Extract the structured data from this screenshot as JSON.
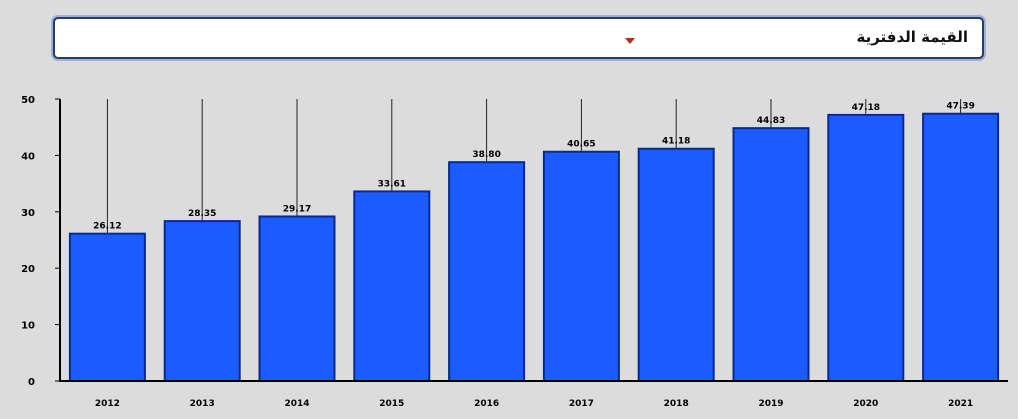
{
  "selector": {
    "selected_label": "القيمة الدفترية"
  },
  "chart_data": {
    "type": "bar",
    "categories": [
      "2012",
      "2013",
      "2014",
      "2015",
      "2016",
      "2017",
      "2018",
      "2019",
      "2020",
      "2021"
    ],
    "values": [
      26.12,
      28.35,
      29.17,
      33.61,
      38.8,
      40.65,
      41.18,
      44.83,
      47.18,
      47.39
    ],
    "value_labels": [
      "26.12",
      "28.35",
      "29.17",
      "33.61",
      "38.80",
      "40.65",
      "41.18",
      "44.83",
      "47.18",
      "47.39"
    ],
    "ylim": [
      0,
      50
    ],
    "yticks": [
      "0",
      "10",
      "20",
      "30",
      "40",
      "50"
    ],
    "grid": "vertical",
    "colors": {
      "bar_fill": "#1a5cff",
      "bar_stroke": "#0a2a8a",
      "grid": "#222222",
      "axis": "#000000"
    }
  }
}
